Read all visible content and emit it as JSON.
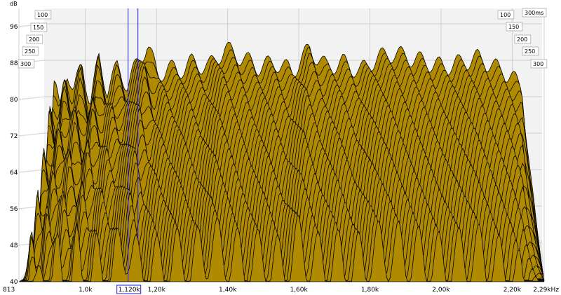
{
  "chart_data": {
    "type": "area",
    "subtype": "cumulative-spectral-decay-waterfall",
    "y_unit": "dB",
    "x_unit": "kHz",
    "y_ticks": [
      "96",
      "88",
      "80",
      "72",
      "64",
      "56",
      "48",
      "40"
    ],
    "ylim": [
      40,
      100
    ],
    "x_ticks": [
      "813",
      "1,0k",
      "1,20k",
      "1,40k",
      "1,60k",
      "1,80k",
      "2,00k",
      "2,20k",
      "2,29kHz"
    ],
    "xlim_hz": [
      813,
      2290
    ],
    "time_slices_left": [
      "100",
      "150",
      "200",
      "250",
      "300"
    ],
    "time_slices_right": [
      "100",
      "300ms",
      "150",
      "200",
      "250",
      "300"
    ],
    "cursor_label": "1,120k",
    "cursor_hz": 1120,
    "slice_count": 30,
    "grid": true,
    "colors": {
      "fill": "#b08a00",
      "outline": "#000000",
      "cursor": "#1e1ee6",
      "floor": "#e8e8e8",
      "wall": "#f2f2f2",
      "grid": "#cfcfcf"
    },
    "series": [
      {
        "values_db": [
          {
            "x": 813,
            "y": 70
          },
          {
            "x": 840,
            "y": 82
          },
          {
            "x": 860,
            "y": 74
          },
          {
            "x": 880,
            "y": 84
          },
          {
            "x": 900,
            "y": 78
          },
          {
            "x": 925,
            "y": 85
          },
          {
            "x": 950,
            "y": 76
          },
          {
            "x": 975,
            "y": 86
          },
          {
            "x": 1000,
            "y": 79
          },
          {
            "x": 1030,
            "y": 84
          },
          {
            "x": 1060,
            "y": 80
          },
          {
            "x": 1090,
            "y": 85
          },
          {
            "x": 1120,
            "y": 89
          },
          {
            "x": 1150,
            "y": 82
          },
          {
            "x": 1180,
            "y": 84
          },
          {
            "x": 1210,
            "y": 83
          },
          {
            "x": 1250,
            "y": 85
          },
          {
            "x": 1300,
            "y": 84
          },
          {
            "x": 1350,
            "y": 88
          },
          {
            "x": 1400,
            "y": 86
          },
          {
            "x": 1450,
            "y": 84
          },
          {
            "x": 1500,
            "y": 85
          },
          {
            "x": 1550,
            "y": 83
          },
          {
            "x": 1600,
            "y": 88
          },
          {
            "x": 1650,
            "y": 84
          },
          {
            "x": 1700,
            "y": 85
          },
          {
            "x": 1750,
            "y": 83
          },
          {
            "x": 1800,
            "y": 86
          },
          {
            "x": 1850,
            "y": 87
          },
          {
            "x": 1900,
            "y": 86
          },
          {
            "x": 1950,
            "y": 85
          },
          {
            "x": 2000,
            "y": 84
          },
          {
            "x": 2050,
            "y": 85
          },
          {
            "x": 2100,
            "y": 86
          },
          {
            "x": 2150,
            "y": 84
          },
          {
            "x": 2200,
            "y": 82
          },
          {
            "x": 2240,
            "y": 78
          },
          {
            "x": 2270,
            "y": 74
          },
          {
            "x": 2290,
            "y": 72
          }
        ]
      }
    ]
  }
}
